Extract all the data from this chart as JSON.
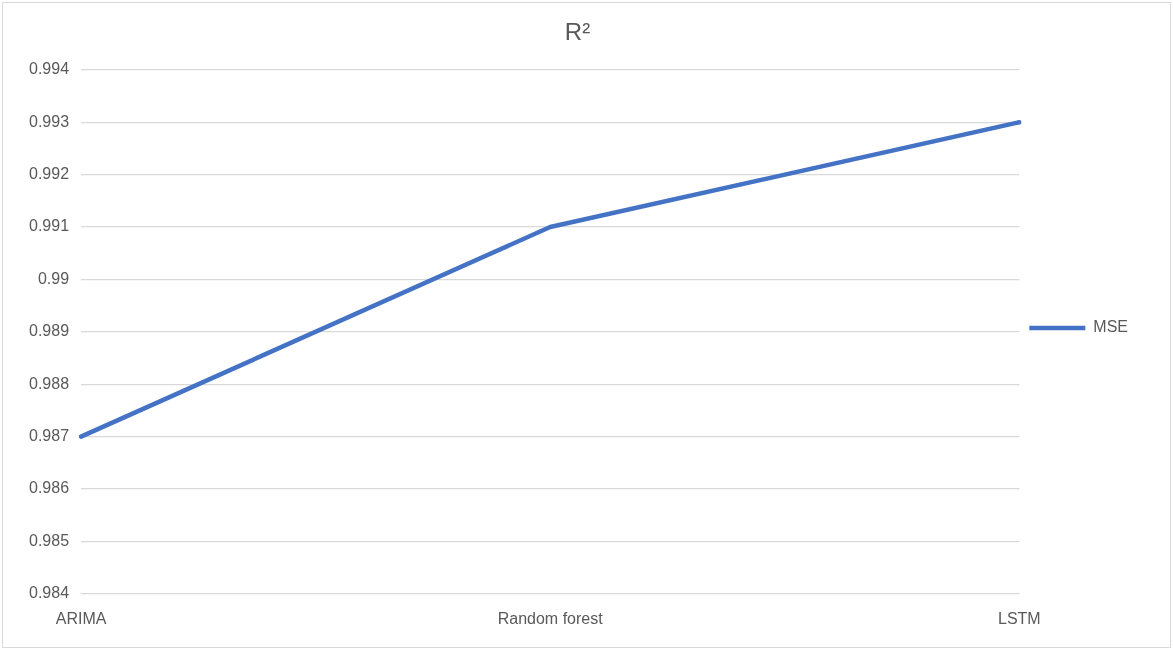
{
  "chart_data": {
    "type": "line",
    "title": "R²",
    "categories": [
      "ARIMA",
      "Random forest",
      "LSTM"
    ],
    "series": [
      {
        "name": "MSE",
        "color": "#4472c4",
        "values": [
          0.987,
          0.991,
          0.993
        ]
      }
    ],
    "ylim": [
      0.984,
      0.994
    ],
    "yticks": [
      0.984,
      0.985,
      0.986,
      0.987,
      0.988,
      0.989,
      0.99,
      0.991,
      0.992,
      0.993,
      0.994
    ],
    "grid": "y",
    "legend": "right",
    "marker": "none",
    "line_style": "solid"
  }
}
